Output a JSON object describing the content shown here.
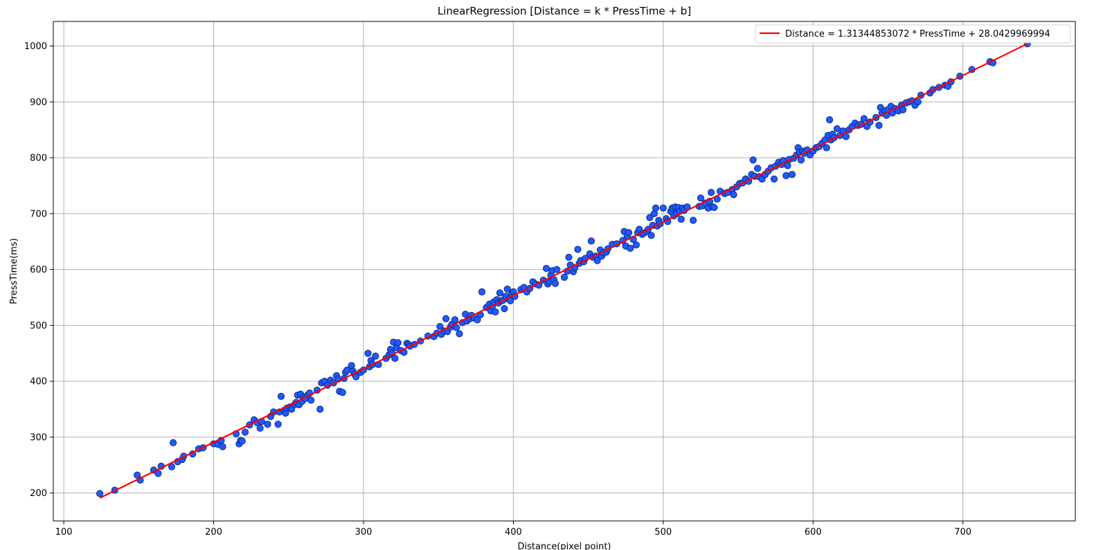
{
  "chart_data": {
    "type": "scatter",
    "title": "LinearRegression [Distance = k * PressTime + b]",
    "xlabel": "Distance(pixel point)",
    "ylabel": "PressTime(ms)",
    "xlim": [
      93,
      775
    ],
    "ylim": [
      150,
      1044
    ],
    "xticks": [
      100,
      200,
      300,
      400,
      500,
      600,
      700
    ],
    "yticks": [
      200,
      300,
      400,
      500,
      600,
      700,
      800,
      900,
      1000
    ],
    "grid": true,
    "legend_position": "top-right",
    "colors": {
      "point_fill": "#1f5bff",
      "point_edge": "#0a2a8c",
      "fit_line": "#ff0000",
      "grid": "#b0b0b0"
    },
    "fit_line": {
      "label": "Distance = 1.31344853072 * PressTime + 28.0429969994",
      "x": [
        124,
        743
      ],
      "y": [
        191,
        1004
      ]
    },
    "points": [
      [
        124,
        199
      ],
      [
        134,
        205
      ],
      [
        149,
        232
      ],
      [
        151,
        223
      ],
      [
        160,
        241
      ],
      [
        163,
        235
      ],
      [
        165,
        248
      ],
      [
        172,
        247
      ],
      [
        173,
        290
      ],
      [
        176,
        256
      ],
      [
        179,
        260
      ],
      [
        180,
        266
      ],
      [
        186,
        270
      ],
      [
        190,
        279
      ],
      [
        193,
        281
      ],
      [
        200,
        288
      ],
      [
        203,
        287
      ],
      [
        205,
        294
      ],
      [
        206,
        283
      ],
      [
        215,
        306
      ],
      [
        217,
        288
      ],
      [
        218,
        294
      ],
      [
        219,
        293
      ],
      [
        221,
        309
      ],
      [
        224,
        322
      ],
      [
        227,
        331
      ],
      [
        229,
        326
      ],
      [
        231,
        316
      ],
      [
        232,
        328
      ],
      [
        236,
        323
      ],
      [
        238,
        337
      ],
      [
        240,
        345
      ],
      [
        243,
        323
      ],
      [
        244,
        345
      ],
      [
        245,
        373
      ],
      [
        247,
        348
      ],
      [
        248,
        343
      ],
      [
        249,
        352
      ],
      [
        251,
        354
      ],
      [
        252,
        350
      ],
      [
        254,
        358
      ],
      [
        255,
        362
      ],
      [
        256,
        375
      ],
      [
        257,
        358
      ],
      [
        258,
        377
      ],
      [
        259,
        364
      ],
      [
        260,
        372
      ],
      [
        261,
        369
      ],
      [
        263,
        376
      ],
      [
        264,
        379
      ],
      [
        265,
        366
      ],
      [
        269,
        384
      ],
      [
        271,
        350
      ],
      [
        272,
        397
      ],
      [
        274,
        400
      ],
      [
        276,
        393
      ],
      [
        278,
        402
      ],
      [
        280,
        397
      ],
      [
        282,
        410
      ],
      [
        283,
        404
      ],
      [
        284,
        382
      ],
      [
        286,
        380
      ],
      [
        287,
        405
      ],
      [
        288,
        416
      ],
      [
        289,
        420
      ],
      [
        292,
        428
      ],
      [
        293,
        418
      ],
      [
        294,
        413
      ],
      [
        295,
        408
      ],
      [
        298,
        416
      ],
      [
        300,
        420
      ],
      [
        303,
        450
      ],
      [
        304,
        426
      ],
      [
        305,
        437
      ],
      [
        306,
        430
      ],
      [
        308,
        445
      ],
      [
        310,
        430
      ],
      [
        315,
        441
      ],
      [
        317,
        447
      ],
      [
        318,
        457
      ],
      [
        319,
        450
      ],
      [
        320,
        470
      ],
      [
        321,
        441
      ],
      [
        322,
        460
      ],
      [
        323,
        469
      ],
      [
        325,
        455
      ],
      [
        327,
        452
      ],
      [
        329,
        468
      ],
      [
        330,
        466
      ],
      [
        331,
        463
      ],
      [
        334,
        466
      ],
      [
        338,
        472
      ],
      [
        343,
        481
      ],
      [
        347,
        480
      ],
      [
        349,
        486
      ],
      [
        351,
        498
      ],
      [
        352,
        484
      ],
      [
        354,
        490
      ],
      [
        355,
        512
      ],
      [
        356,
        489
      ],
      [
        358,
        497
      ],
      [
        359,
        502
      ],
      [
        361,
        510
      ],
      [
        362,
        496
      ],
      [
        364,
        485
      ],
      [
        366,
        505
      ],
      [
        368,
        520
      ],
      [
        369,
        508
      ],
      [
        371,
        512
      ],
      [
        372,
        518
      ],
      [
        374,
        513
      ],
      [
        376,
        510
      ],
      [
        378,
        519
      ],
      [
        379,
        560
      ],
      [
        382,
        532
      ],
      [
        384,
        538
      ],
      [
        385,
        526
      ],
      [
        386,
        534
      ],
      [
        387,
        542
      ],
      [
        388,
        524
      ],
      [
        389,
        546
      ],
      [
        390,
        540
      ],
      [
        391,
        558
      ],
      [
        392,
        544
      ],
      [
        393,
        545
      ],
      [
        394,
        530
      ],
      [
        395,
        552
      ],
      [
        396,
        565
      ],
      [
        397,
        547
      ],
      [
        398,
        544
      ],
      [
        399,
        556
      ],
      [
        400,
        560
      ],
      [
        401,
        552
      ],
      [
        405,
        564
      ],
      [
        407,
        568
      ],
      [
        409,
        560
      ],
      [
        411,
        566
      ],
      [
        413,
        578
      ],
      [
        415,
        574
      ],
      [
        417,
        572
      ],
      [
        420,
        581
      ],
      [
        422,
        602
      ],
      [
        423,
        574
      ],
      [
        424,
        578
      ],
      [
        425,
        590
      ],
      [
        426,
        598
      ],
      [
        427,
        582
      ],
      [
        428,
        575
      ],
      [
        429,
        600
      ],
      [
        434,
        586
      ],
      [
        436,
        597
      ],
      [
        437,
        622
      ],
      [
        438,
        608
      ],
      [
        440,
        596
      ],
      [
        441,
        603
      ],
      [
        443,
        636
      ],
      [
        444,
        611
      ],
      [
        445,
        616
      ],
      [
        447,
        614
      ],
      [
        448,
        620
      ],
      [
        451,
        628
      ],
      [
        452,
        651
      ],
      [
        453,
        622
      ],
      [
        455,
        624
      ],
      [
        456,
        616
      ],
      [
        458,
        635
      ],
      [
        459,
        624
      ],
      [
        460,
        630
      ],
      [
        462,
        631
      ],
      [
        463,
        637
      ],
      [
        466,
        645
      ],
      [
        469,
        646
      ],
      [
        473,
        652
      ],
      [
        474,
        668
      ],
      [
        475,
        642
      ],
      [
        476,
        660
      ],
      [
        477,
        666
      ],
      [
        478,
        638
      ],
      [
        480,
        654
      ],
      [
        482,
        644
      ],
      [
        483,
        666
      ],
      [
        484,
        672
      ],
      [
        486,
        663
      ],
      [
        487,
        665
      ],
      [
        489,
        668
      ],
      [
        490,
        672
      ],
      [
        491,
        693
      ],
      [
        492,
        661
      ],
      [
        493,
        679
      ],
      [
        494,
        700
      ],
      [
        495,
        710
      ],
      [
        496,
        678
      ],
      [
        497,
        688
      ],
      [
        498,
        682
      ],
      [
        500,
        710
      ],
      [
        502,
        691
      ],
      [
        503,
        686
      ],
      [
        505,
        704
      ],
      [
        506,
        710
      ],
      [
        507,
        696
      ],
      [
        508,
        712
      ],
      [
        509,
        700
      ],
      [
        510,
        711
      ],
      [
        511,
        704
      ],
      [
        512,
        690
      ],
      [
        513,
        710
      ],
      [
        514,
        706
      ],
      [
        516,
        712
      ],
      [
        520,
        688
      ],
      [
        524,
        713
      ],
      [
        525,
        728
      ],
      [
        526,
        714
      ],
      [
        528,
        719
      ],
      [
        530,
        710
      ],
      [
        531,
        722
      ],
      [
        532,
        738
      ],
      [
        533,
        712
      ],
      [
        534,
        711
      ],
      [
        536,
        726
      ],
      [
        538,
        740
      ],
      [
        541,
        736
      ],
      [
        543,
        738
      ],
      [
        546,
        743
      ],
      [
        547,
        734
      ],
      [
        549,
        748
      ],
      [
        551,
        754
      ],
      [
        553,
        755
      ],
      [
        555,
        762
      ],
      [
        557,
        758
      ],
      [
        559,
        770
      ],
      [
        560,
        796
      ],
      [
        561,
        767
      ],
      [
        563,
        781
      ],
      [
        564,
        766
      ],
      [
        566,
        762
      ],
      [
        568,
        770
      ],
      [
        570,
        776
      ],
      [
        572,
        782
      ],
      [
        574,
        762
      ],
      [
        575,
        785
      ],
      [
        577,
        792
      ],
      [
        579,
        788
      ],
      [
        580,
        795
      ],
      [
        582,
        768
      ],
      [
        583,
        786
      ],
      [
        584,
        797
      ],
      [
        586,
        770
      ],
      [
        587,
        799
      ],
      [
        589,
        805
      ],
      [
        590,
        818
      ],
      [
        591,
        810
      ],
      [
        592,
        796
      ],
      [
        593,
        812
      ],
      [
        594,
        808
      ],
      [
        596,
        814
      ],
      [
        598,
        805
      ],
      [
        600,
        812
      ],
      [
        602,
        818
      ],
      [
        604,
        820
      ],
      [
        606,
        826
      ],
      [
        608,
        832
      ],
      [
        609,
        818
      ],
      [
        610,
        840
      ],
      [
        611,
        868
      ],
      [
        612,
        832
      ],
      [
        613,
        842
      ],
      [
        614,
        836
      ],
      [
        616,
        852
      ],
      [
        618,
        840
      ],
      [
        620,
        848
      ],
      [
        622,
        838
      ],
      [
        624,
        850
      ],
      [
        626,
        856
      ],
      [
        628,
        862
      ],
      [
        630,
        858
      ],
      [
        632,
        860
      ],
      [
        634,
        870
      ],
      [
        636,
        856
      ],
      [
        638,
        864
      ],
      [
        642,
        872
      ],
      [
        644,
        858
      ],
      [
        645,
        890
      ],
      [
        646,
        880
      ],
      [
        648,
        884
      ],
      [
        649,
        876
      ],
      [
        650,
        886
      ],
      [
        652,
        892
      ],
      [
        653,
        880
      ],
      [
        655,
        888
      ],
      [
        657,
        884
      ],
      [
        659,
        894
      ],
      [
        660,
        886
      ],
      [
        662,
        898
      ],
      [
        664,
        900
      ],
      [
        666,
        902
      ],
      [
        668,
        894
      ],
      [
        670,
        900
      ],
      [
        672,
        912
      ],
      [
        678,
        916
      ],
      [
        680,
        922
      ],
      [
        684,
        926
      ],
      [
        688,
        930
      ],
      [
        690,
        928
      ],
      [
        692,
        936
      ],
      [
        698,
        946
      ],
      [
        706,
        958
      ],
      [
        718,
        972
      ],
      [
        720,
        970
      ],
      [
        743,
        1004
      ]
    ]
  }
}
